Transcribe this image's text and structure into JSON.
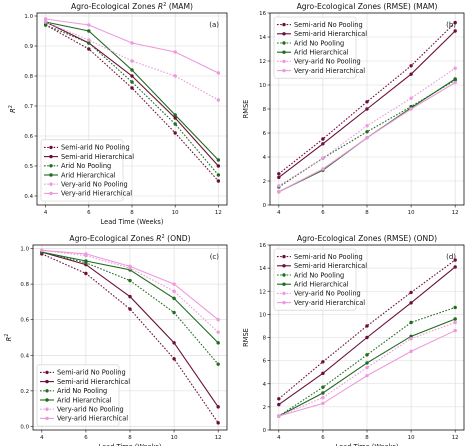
{
  "series_styles": [
    {
      "name": "Semi-arid No Pooling",
      "color": "#6b0f3a",
      "dash": "1.6,1.6",
      "marker": true
    },
    {
      "name": "Semi-arid Hierarchical",
      "color": "#6b0f3a",
      "dash": "",
      "marker": true
    },
    {
      "name": "Arid No Pooling",
      "color": "#1f6b1f",
      "dash": "1.6,1.6",
      "marker": true
    },
    {
      "name": "Arid Hierarchical",
      "color": "#1f6b1f",
      "dash": "",
      "marker": true
    },
    {
      "name": "Very-arid No Pooling",
      "color": "#ee99dd",
      "dash": "1.6,1.6",
      "marker": true
    },
    {
      "name": "Very-arid Hierarchical",
      "color": "#ee99dd",
      "dash": "",
      "marker": true
    }
  ],
  "chart_data": [
    {
      "type": "line",
      "id": "a",
      "title_pre": "Agro-Ecological Zones ",
      "title_math": "R",
      "title_sup": "2",
      "title_post": " (MAM)",
      "panel_tag": "(a)",
      "xlabel": "Lead Time (Weeks)",
      "ylabel_math": "R",
      "ylabel_sup": "2",
      "x": [
        4,
        6,
        8,
        10,
        12
      ],
      "xlim": [
        3.6,
        12.4
      ],
      "ylim": [
        0.37,
        1.01
      ],
      "yticks": [
        0.4,
        0.5,
        0.6,
        0.7,
        0.8,
        0.9,
        1.0
      ],
      "ytick_labels": [
        "0.4",
        "0.5",
        "0.6",
        "0.7",
        "0.8",
        "0.9",
        "1.0"
      ],
      "legend_position": "bottom-left",
      "series": [
        {
          "name": "Semi-arid No Pooling",
          "values": [
            0.97,
            0.89,
            0.76,
            0.61,
            0.45
          ]
        },
        {
          "name": "Semi-arid Hierarchical",
          "values": [
            0.98,
            0.91,
            0.8,
            0.66,
            0.5
          ]
        },
        {
          "name": "Arid No Pooling",
          "values": [
            0.97,
            0.91,
            0.78,
            0.64,
            0.47
          ]
        },
        {
          "name": "Arid Hierarchical",
          "values": [
            0.98,
            0.95,
            0.82,
            0.67,
            0.52
          ]
        },
        {
          "name": "Very-arid No Pooling",
          "values": [
            0.98,
            0.92,
            0.85,
            0.8,
            0.72
          ]
        },
        {
          "name": "Very-arid Hierarchical",
          "values": [
            0.99,
            0.97,
            0.91,
            0.88,
            0.81
          ]
        }
      ]
    },
    {
      "type": "line",
      "id": "b",
      "title_pre": "Agro-Ecological Zones (RMSE) (MAM)",
      "title_math": "",
      "title_sup": "",
      "title_post": "",
      "panel_tag": "(b)",
      "xlabel": "",
      "ylabel_math": "RMSE",
      "ylabel_sup": "",
      "x": [
        4,
        6,
        8,
        10,
        12
      ],
      "xlim": [
        3.6,
        12.4
      ],
      "ylim": [
        0,
        16
      ],
      "yticks": [
        0,
        2,
        4,
        6,
        8,
        10,
        12,
        14,
        16
      ],
      "ytick_labels": [
        "0",
        "2",
        "4",
        "6",
        "8",
        "10",
        "12",
        "14",
        "16"
      ],
      "legend_position": "top-left",
      "series": [
        {
          "name": "Semi-arid No Pooling",
          "values": [
            2.6,
            5.5,
            8.6,
            11.6,
            15.2
          ]
        },
        {
          "name": "Semi-arid Hierarchical",
          "values": [
            2.3,
            5.1,
            8.0,
            10.9,
            14.5
          ]
        },
        {
          "name": "Arid No Pooling",
          "values": [
            1.5,
            3.9,
            6.1,
            8.2,
            10.4
          ]
        },
        {
          "name": "Arid Hierarchical",
          "values": [
            1.1,
            2.9,
            5.6,
            8.1,
            10.5
          ]
        },
        {
          "name": "Very-arid No Pooling",
          "values": [
            1.6,
            3.9,
            6.6,
            8.9,
            11.4
          ]
        },
        {
          "name": "Very-arid Hierarchical",
          "values": [
            1.1,
            3.0,
            5.6,
            8.0,
            10.2
          ]
        }
      ]
    },
    {
      "type": "line",
      "id": "c",
      "title_pre": "Agro-Ecological Zones ",
      "title_math": "R",
      "title_sup": "2",
      "title_post": " (OND)",
      "panel_tag": "(c)",
      "xlabel": "Lead Time (Weeks)",
      "ylabel_math": "R",
      "ylabel_sup": "2",
      "x": [
        4,
        6,
        8,
        10,
        12
      ],
      "xlim": [
        3.6,
        12.4
      ],
      "ylim": [
        -0.02,
        1.02
      ],
      "yticks": [
        0.0,
        0.2,
        0.4,
        0.6,
        0.8,
        1.0
      ],
      "ytick_labels": [
        "0.0",
        "0.2",
        "0.4",
        "0.6",
        "0.8",
        "1.0"
      ],
      "legend_position": "bottom-left",
      "series": [
        {
          "name": "Semi-arid No Pooling",
          "values": [
            0.97,
            0.86,
            0.66,
            0.38,
            0.02
          ]
        },
        {
          "name": "Semi-arid Hierarchical",
          "values": [
            0.98,
            0.91,
            0.73,
            0.47,
            0.11
          ]
        },
        {
          "name": "Arid No Pooling",
          "values": [
            0.98,
            0.92,
            0.82,
            0.64,
            0.35
          ]
        },
        {
          "name": "Arid Hierarchical",
          "values": [
            0.98,
            0.93,
            0.88,
            0.72,
            0.47
          ]
        },
        {
          "name": "Very-arid No Pooling",
          "values": [
            0.99,
            0.96,
            0.89,
            0.76,
            0.53
          ]
        },
        {
          "name": "Very-arid Hierarchical",
          "values": [
            0.99,
            0.97,
            0.9,
            0.8,
            0.6
          ]
        }
      ]
    },
    {
      "type": "line",
      "id": "d",
      "title_pre": "Agro-Ecological Zones (RMSE) (OND)",
      "title_math": "",
      "title_sup": "",
      "title_post": "",
      "panel_tag": "(d)",
      "xlabel": "Lead Time (Weeks)",
      "ylabel_math": "RMSE",
      "ylabel_sup": "",
      "x": [
        4,
        6,
        8,
        10,
        12
      ],
      "xlim": [
        3.6,
        12.4
      ],
      "ylim": [
        0,
        16
      ],
      "yticks": [
        0,
        2,
        4,
        6,
        8,
        10,
        12,
        14,
        16
      ],
      "ytick_labels": [
        "0",
        "2",
        "4",
        "6",
        "8",
        "10",
        "12",
        "14",
        "16"
      ],
      "legend_position": "top-left",
      "series": [
        {
          "name": "Semi-arid No Pooling",
          "values": [
            2.7,
            5.9,
            9.0,
            11.9,
            14.7
          ]
        },
        {
          "name": "Semi-arid Hierarchical",
          "values": [
            2.2,
            4.9,
            8.0,
            11.0,
            14.1
          ]
        },
        {
          "name": "Arid No Pooling",
          "values": [
            1.2,
            3.7,
            6.5,
            9.3,
            10.6
          ]
        },
        {
          "name": "Arid Hierarchical",
          "values": [
            1.2,
            3.2,
            5.8,
            8.1,
            9.6
          ]
        },
        {
          "name": "Very-arid No Pooling",
          "values": [
            1.2,
            2.8,
            5.4,
            7.9,
            9.3
          ]
        },
        {
          "name": "Very-arid Hierarchical",
          "values": [
            1.2,
            2.3,
            4.7,
            6.8,
            8.6
          ]
        }
      ]
    }
  ]
}
